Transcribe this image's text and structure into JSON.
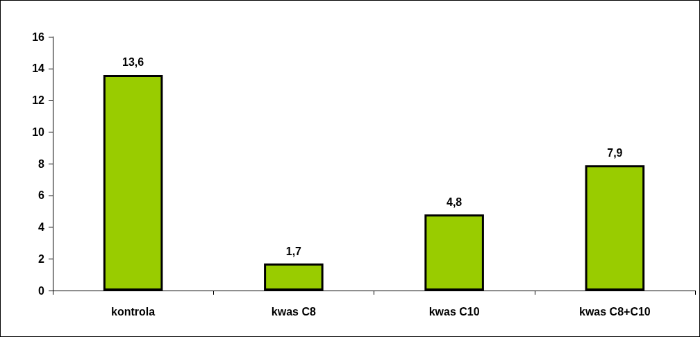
{
  "chart_data": {
    "type": "bar",
    "categories": [
      "kontrola",
      "kwas C8",
      "kwas C10",
      "kwas C8+C10"
    ],
    "values": [
      13.6,
      1.7,
      4.8,
      7.9
    ],
    "value_labels": [
      "13,6",
      "1,7",
      "4,8",
      "7,9"
    ],
    "color": "#99cc00",
    "ylim": [
      0,
      16
    ],
    "yticks": [
      0,
      2,
      4,
      6,
      8,
      10,
      12,
      14,
      16
    ],
    "grid": false
  }
}
